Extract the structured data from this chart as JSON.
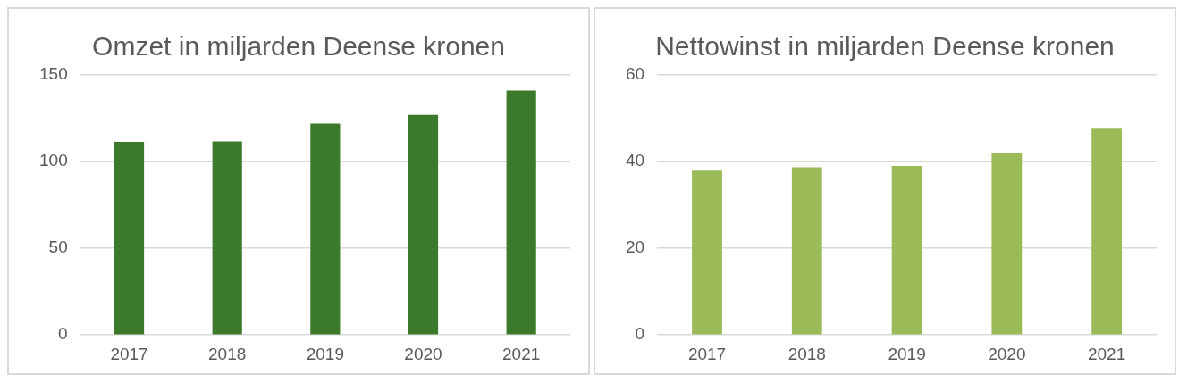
{
  "chart_data": [
    {
      "type": "bar",
      "title": "Omzet in miljarden Deense kronen",
      "categories": [
        "2017",
        "2018",
        "2019",
        "2020",
        "2021"
      ],
      "values": [
        111.4,
        111.6,
        121.9,
        126.9,
        141.0
      ],
      "color": "#3b7a2b",
      "ylim": [
        0,
        150
      ],
      "yticks": [
        0,
        50,
        100,
        150
      ],
      "grid": "y"
    },
    {
      "type": "bar",
      "title": "Nettowinst in miljarden Deense kronen",
      "categories": [
        "2017",
        "2018",
        "2019",
        "2020",
        "2021"
      ],
      "values": [
        38.1,
        38.7,
        39.0,
        42.1,
        47.8
      ],
      "color": "#9bbb59",
      "ylim": [
        0,
        60
      ],
      "yticks": [
        0,
        20,
        40,
        60
      ],
      "grid": "y"
    }
  ]
}
